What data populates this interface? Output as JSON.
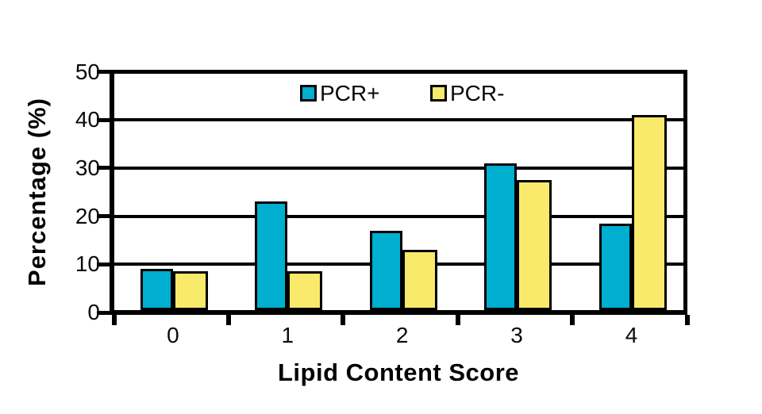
{
  "chart_data": {
    "type": "bar",
    "title": "",
    "xlabel": "Lipid Content Score",
    "ylabel": "Percentage (%)",
    "categories": [
      "0",
      "1",
      "2",
      "3",
      "4"
    ],
    "series": [
      {
        "name": "PCR+",
        "color": "#00AED0",
        "values": [
          9,
          23,
          17,
          31,
          18.5
        ]
      },
      {
        "name": "PCR-",
        "color": "#FAEA6C",
        "values": [
          8.5,
          8.5,
          13,
          27.5,
          41
        ]
      }
    ],
    "ylim": [
      0,
      50
    ],
    "yticks": [
      0,
      10,
      20,
      30,
      40,
      50
    ],
    "grid": true,
    "gridline_color": "#000000",
    "axis_color": "#000000",
    "bar_outline_color": "#000000",
    "background_color": "#ffffff",
    "legend_position": "top-center-inside"
  }
}
